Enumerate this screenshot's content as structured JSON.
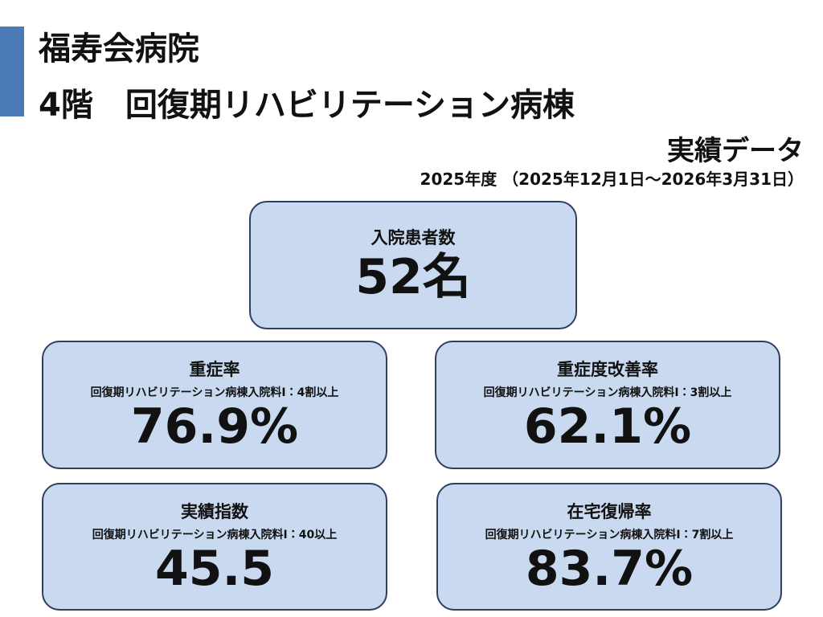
{
  "header": {
    "hospital": "福寿会病院",
    "ward": "4階　回復期リハビリテーション病棟",
    "subtitle": "実績データ",
    "period": "2025年度 （2025年12月1日～2026年3月31日）"
  },
  "cards": [
    {
      "label": "入院患者数",
      "value": "52名"
    },
    {
      "label": "重症率",
      "note": "回復期リハビリテーション病棟入院料Ⅰ：4割以上",
      "value": "76.9%"
    },
    {
      "label": "重症度改善率",
      "note": "回復期リハビリテーション病棟入院料Ⅰ：3割以上",
      "value": "62.1%"
    },
    {
      "label": "実績指数",
      "note": "回復期リハビリテーション病棟入院料Ⅰ：40以上",
      "value": "45.5"
    },
    {
      "label": "在宅復帰率",
      "note": "回復期リハビリテーション病棟入院料Ⅰ：7割以上",
      "value": "83.7%"
    }
  ]
}
